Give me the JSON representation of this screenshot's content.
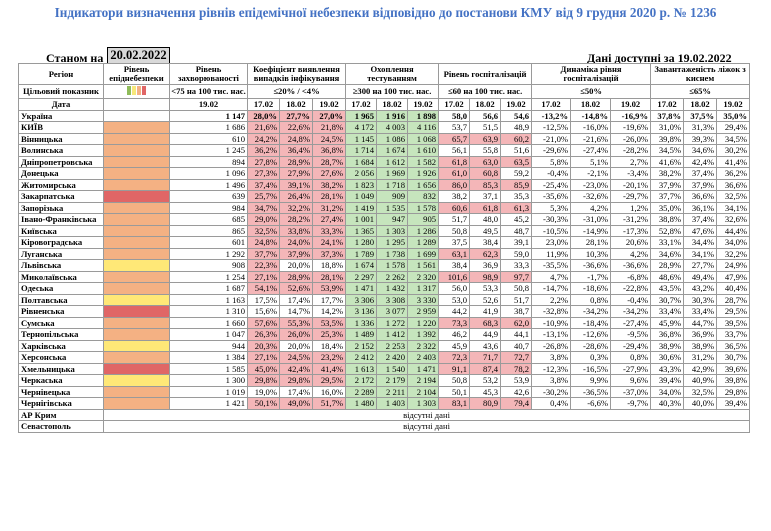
{
  "title": "Індикатори визначення рівнів епідемічної небезпеки відповідно до постанови КМУ від 9 грудня 2020 р. № 1236",
  "stanom_label": "Станом на",
  "stanom_date": "20.02.2022",
  "data_available": "Дані доступні за  19.02.2022",
  "headers": {
    "region": "Регіон",
    "level": "Рівень епіднебезпеки",
    "incidence": "Рівень захворюваності",
    "detection": "Коефіцієнт виявлення випадків інфікування",
    "testing": "Охоплення тестуванням",
    "hospitalization": "Рівень госпіталізацій",
    "dynamics": "Динаміка рівня госпіталізацій",
    "beds": "Завантаженість ліжок з киснем"
  },
  "target_row": {
    "label": "Цільовий показник",
    "incidence": "<75 на 100 тис. нас.",
    "detection": "≤20% / <4%",
    "testing": "≥300 на 100 тис. нас.",
    "hospitalization": "≤60 на 100 тис. нас.",
    "dynamics": "≤50%",
    "beds": "≤65%"
  },
  "target_swatches": [
    "#8fbc5a",
    "#f7e87a",
    "#f4b183",
    "#e06666"
  ],
  "date_row": {
    "label": "Дата",
    "incidence": "19.02",
    "dates": [
      "17.02",
      "18.02",
      "19.02"
    ]
  },
  "level_colors": {
    "orange": "#f4b183",
    "red": "#e06666",
    "yellow": "#ffe877"
  },
  "footer_text": "відсутні дані",
  "rows": [
    {
      "name": "Україна",
      "level": "",
      "inc": "1 147",
      "det": [
        "28,0%",
        "27,7%",
        "27,0%"
      ],
      "det_c": [
        "r",
        "r",
        "r"
      ],
      "tst": [
        "1 965",
        "1 916",
        "1 898"
      ],
      "tst_c": [
        "g",
        "g",
        "g"
      ],
      "hos": [
        "58,0",
        "56,6",
        "54,6"
      ],
      "hos_c": [
        "",
        "",
        ""
      ],
      "dyn": [
        "-13,2%",
        "-14,8%",
        "-16,9%"
      ],
      "bed": [
        "37,8%",
        "37,5%",
        "35,0%"
      ]
    },
    {
      "name": "КИЇВ",
      "level": "orange",
      "inc": "1 686",
      "det": [
        "21,6%",
        "22,6%",
        "21,8%"
      ],
      "det_c": [
        "r",
        "r",
        "r"
      ],
      "tst": [
        "4 172",
        "4 003",
        "4 116"
      ],
      "tst_c": [
        "g",
        "g",
        "g"
      ],
      "hos": [
        "53,7",
        "51,5",
        "48,9"
      ],
      "hos_c": [
        "",
        "",
        ""
      ],
      "dyn": [
        "-12,5%",
        "-16,0%",
        "-19,6%"
      ],
      "bed": [
        "31,0%",
        "31,3%",
        "29,4%"
      ]
    },
    {
      "name": "Вінницька",
      "level": "orange",
      "inc": "610",
      "det": [
        "24,2%",
        "24,8%",
        "24,5%"
      ],
      "det_c": [
        "r",
        "r",
        "r"
      ],
      "tst": [
        "1 145",
        "1 086",
        "1 068"
      ],
      "tst_c": [
        "g",
        "g",
        "g"
      ],
      "hos": [
        "65,7",
        "63,9",
        "60,2"
      ],
      "hos_c": [
        "r",
        "r",
        "r"
      ],
      "dyn": [
        "-21,0%",
        "-21,6%",
        "-26,0%"
      ],
      "bed": [
        "39,8%",
        "39,3%",
        "34,5%"
      ]
    },
    {
      "name": "Волинська",
      "level": "orange",
      "inc": "1 245",
      "det": [
        "36,2%",
        "36,4%",
        "36,8%"
      ],
      "det_c": [
        "r",
        "r",
        "r"
      ],
      "tst": [
        "1 714",
        "1 674",
        "1 610"
      ],
      "tst_c": [
        "g",
        "g",
        "g"
      ],
      "hos": [
        "56,1",
        "55,8",
        "51,6"
      ],
      "hos_c": [
        "",
        "",
        ""
      ],
      "dyn": [
        "-29,6%",
        "-27,4%",
        "-28,2%"
      ],
      "bed": [
        "34,5%",
        "34,6%",
        "30,2%"
      ]
    },
    {
      "name": "Дніпропетровська",
      "level": "orange",
      "inc": "894",
      "det": [
        "27,8%",
        "28,9%",
        "28,7%"
      ],
      "det_c": [
        "r",
        "r",
        "r"
      ],
      "tst": [
        "1 684",
        "1 612",
        "1 582"
      ],
      "tst_c": [
        "g",
        "g",
        "g"
      ],
      "hos": [
        "61,8",
        "63,0",
        "63,5"
      ],
      "hos_c": [
        "r",
        "r",
        "r"
      ],
      "dyn": [
        "5,8%",
        "5,1%",
        "2,7%"
      ],
      "bed": [
        "41,6%",
        "42,4%",
        "41,4%"
      ]
    },
    {
      "name": "Донецька",
      "level": "orange",
      "inc": "1 096",
      "det": [
        "27,3%",
        "27,9%",
        "27,6%"
      ],
      "det_c": [
        "r",
        "r",
        "r"
      ],
      "tst": [
        "2 056",
        "1 969",
        "1 926"
      ],
      "tst_c": [
        "g",
        "g",
        "g"
      ],
      "hos": [
        "61,0",
        "60,8",
        "59,2"
      ],
      "hos_c": [
        "r",
        "r",
        ""
      ],
      "dyn": [
        "-0,4%",
        "-2,1%",
        "-3,4%"
      ],
      "bed": [
        "38,2%",
        "37,4%",
        "36,2%"
      ]
    },
    {
      "name": "Житомирська",
      "level": "orange",
      "inc": "1 496",
      "det": [
        "37,4%",
        "39,1%",
        "38,2%"
      ],
      "det_c": [
        "r",
        "r",
        "r"
      ],
      "tst": [
        "1 823",
        "1 718",
        "1 656"
      ],
      "tst_c": [
        "g",
        "g",
        "g"
      ],
      "hos": [
        "86,0",
        "85,3",
        "85,9"
      ],
      "hos_c": [
        "r",
        "r",
        "r"
      ],
      "dyn": [
        "-25,4%",
        "-23,0%",
        "-20,1%"
      ],
      "bed": [
        "37,9%",
        "37,9%",
        "36,6%"
      ]
    },
    {
      "name": "Закарпатська",
      "level": "red",
      "inc": "639",
      "det": [
        "25,7%",
        "26,4%",
        "28,1%"
      ],
      "det_c": [
        "r",
        "r",
        "r"
      ],
      "tst": [
        "1 049",
        "909",
        "832"
      ],
      "tst_c": [
        "g",
        "g",
        "g"
      ],
      "hos": [
        "38,2",
        "37,1",
        "35,3"
      ],
      "hos_c": [
        "",
        "",
        ""
      ],
      "dyn": [
        "-35,6%",
        "-32,6%",
        "-29,7%"
      ],
      "bed": [
        "37,7%",
        "36,6%",
        "32,5%"
      ]
    },
    {
      "name": "Запорізька",
      "level": "orange",
      "inc": "984",
      "det": [
        "34,7%",
        "32,2%",
        "31,2%"
      ],
      "det_c": [
        "r",
        "r",
        "r"
      ],
      "tst": [
        "1 419",
        "1 535",
        "1 578"
      ],
      "tst_c": [
        "g",
        "g",
        "g"
      ],
      "hos": [
        "60,6",
        "61,8",
        "61,3"
      ],
      "hos_c": [
        "r",
        "r",
        "r"
      ],
      "dyn": [
        "5,3%",
        "4,2%",
        "1,2%"
      ],
      "bed": [
        "35,0%",
        "36,1%",
        "34,1%"
      ]
    },
    {
      "name": "Івано-Франківська",
      "level": "orange",
      "inc": "685",
      "det": [
        "29,0%",
        "28,2%",
        "27,4%"
      ],
      "det_c": [
        "r",
        "r",
        "r"
      ],
      "tst": [
        "1 001",
        "947",
        "905"
      ],
      "tst_c": [
        "g",
        "g",
        "g"
      ],
      "hos": [
        "51,7",
        "48,0",
        "45,2"
      ],
      "hos_c": [
        "",
        "",
        ""
      ],
      "dyn": [
        "-30,3%",
        "-31,0%",
        "-31,2%"
      ],
      "bed": [
        "38,8%",
        "37,4%",
        "32,6%"
      ]
    },
    {
      "name": "Київська",
      "level": "orange",
      "inc": "865",
      "det": [
        "32,5%",
        "33,8%",
        "33,3%"
      ],
      "det_c": [
        "r",
        "r",
        "r"
      ],
      "tst": [
        "1 365",
        "1 303",
        "1 286"
      ],
      "tst_c": [
        "g",
        "g",
        "g"
      ],
      "hos": [
        "50,8",
        "49,5",
        "48,7"
      ],
      "hos_c": [
        "",
        "",
        ""
      ],
      "dyn": [
        "-10,5%",
        "-14,9%",
        "-17,3%"
      ],
      "bed": [
        "52,8%",
        "47,6%",
        "44,4%"
      ]
    },
    {
      "name": "Кіровоградська",
      "level": "orange",
      "inc": "601",
      "det": [
        "24,8%",
        "24,0%",
        "24,1%"
      ],
      "det_c": [
        "r",
        "r",
        "r"
      ],
      "tst": [
        "1 280",
        "1 295",
        "1 289"
      ],
      "tst_c": [
        "g",
        "g",
        "g"
      ],
      "hos": [
        "37,5",
        "38,4",
        "39,1"
      ],
      "hos_c": [
        "",
        "",
        ""
      ],
      "dyn": [
        "23,0%",
        "28,1%",
        "20,6%"
      ],
      "bed": [
        "33,1%",
        "34,4%",
        "34,0%"
      ]
    },
    {
      "name": "Луганська",
      "level": "orange",
      "inc": "1 292",
      "det": [
        "37,7%",
        "37,9%",
        "37,3%"
      ],
      "det_c": [
        "r",
        "r",
        "r"
      ],
      "tst": [
        "1 789",
        "1 738",
        "1 699"
      ],
      "tst_c": [
        "g",
        "g",
        "g"
      ],
      "hos": [
        "63,1",
        "62,3",
        "59,0"
      ],
      "hos_c": [
        "r",
        "r",
        ""
      ],
      "dyn": [
        "11,9%",
        "10,3%",
        "4,2%"
      ],
      "bed": [
        "34,6%",
        "34,1%",
        "32,2%"
      ]
    },
    {
      "name": "Львівська",
      "level": "yellow",
      "inc": "908",
      "det": [
        "22,3%",
        "20,0%",
        "18,8%"
      ],
      "det_c": [
        "r",
        "",
        ""
      ],
      "tst": [
        "1 674",
        "1 578",
        "1 561"
      ],
      "tst_c": [
        "g",
        "g",
        "g"
      ],
      "hos": [
        "38,4",
        "36,9",
        "33,3"
      ],
      "hos_c": [
        "",
        "",
        ""
      ],
      "dyn": [
        "-35,5%",
        "-36,6%",
        "-36,6%"
      ],
      "bed": [
        "28,9%",
        "27,7%",
        "24,9%"
      ]
    },
    {
      "name": "Миколаївська",
      "level": "orange",
      "inc": "1 254",
      "det": [
        "27,1%",
        "28,9%",
        "28,1%"
      ],
      "det_c": [
        "r",
        "r",
        "r"
      ],
      "tst": [
        "2 297",
        "2 262",
        "2 320"
      ],
      "tst_c": [
        "g",
        "g",
        "g"
      ],
      "hos": [
        "101,6",
        "98,9",
        "97,7"
      ],
      "hos_c": [
        "r",
        "r",
        "r"
      ],
      "dyn": [
        "4,7%",
        "-1,7%",
        "-6,8%"
      ],
      "bed": [
        "48,6%",
        "49,4%",
        "47,9%"
      ]
    },
    {
      "name": "Одеська",
      "level": "orange",
      "inc": "1 687",
      "det": [
        "54,1%",
        "52,6%",
        "53,9%"
      ],
      "det_c": [
        "r",
        "r",
        "r"
      ],
      "tst": [
        "1 471",
        "1 432",
        "1 317"
      ],
      "tst_c": [
        "g",
        "g",
        "g"
      ],
      "hos": [
        "56,0",
        "53,3",
        "50,8"
      ],
      "hos_c": [
        "",
        "",
        ""
      ],
      "dyn": [
        "-14,7%",
        "-18,6%",
        "-22,8%"
      ],
      "bed": [
        "43,5%",
        "43,2%",
        "40,4%"
      ]
    },
    {
      "name": "Полтавська",
      "level": "yellow",
      "inc": "1 163",
      "det": [
        "17,5%",
        "17,4%",
        "17,7%"
      ],
      "det_c": [
        "",
        "",
        ""
      ],
      "tst": [
        "3 306",
        "3 308",
        "3 330"
      ],
      "tst_c": [
        "g",
        "g",
        "g"
      ],
      "hos": [
        "53,0",
        "52,6",
        "51,7"
      ],
      "hos_c": [
        "",
        "",
        ""
      ],
      "dyn": [
        "2,2%",
        "0,8%",
        "-0,4%"
      ],
      "bed": [
        "30,7%",
        "30,3%",
        "28,7%"
      ]
    },
    {
      "name": "Рівненська",
      "level": "red",
      "inc": "1 310",
      "det": [
        "15,6%",
        "14,7%",
        "14,2%"
      ],
      "det_c": [
        "",
        "",
        ""
      ],
      "tst": [
        "3 136",
        "3 077",
        "2 959"
      ],
      "tst_c": [
        "g",
        "g",
        "g"
      ],
      "hos": [
        "44,2",
        "41,9",
        "38,7"
      ],
      "hos_c": [
        "",
        "",
        ""
      ],
      "dyn": [
        "-32,8%",
        "-34,2%",
        "-34,2%"
      ],
      "bed": [
        "33,4%",
        "33,4%",
        "29,5%"
      ]
    },
    {
      "name": "Сумська",
      "level": "orange",
      "inc": "1 660",
      "det": [
        "57,6%",
        "55,3%",
        "53,5%"
      ],
      "det_c": [
        "r",
        "r",
        "r"
      ],
      "tst": [
        "1 336",
        "1 272",
        "1 220"
      ],
      "tst_c": [
        "g",
        "g",
        "g"
      ],
      "hos": [
        "73,3",
        "68,3",
        "62,0"
      ],
      "hos_c": [
        "r",
        "r",
        "r"
      ],
      "dyn": [
        "-10,9%",
        "-18,4%",
        "-27,4%"
      ],
      "bed": [
        "45,9%",
        "44,7%",
        "39,5%"
      ]
    },
    {
      "name": "Тернопільська",
      "level": "orange",
      "inc": "1 047",
      "det": [
        "26,3%",
        "26,0%",
        "25,3%"
      ],
      "det_c": [
        "r",
        "r",
        "r"
      ],
      "tst": [
        "1 489",
        "1 412",
        "1 392"
      ],
      "tst_c": [
        "g",
        "g",
        "g"
      ],
      "hos": [
        "46,2",
        "44,9",
        "44,1"
      ],
      "hos_c": [
        "",
        "",
        ""
      ],
      "dyn": [
        "-13,1%",
        "-12,6%",
        "-9,5%"
      ],
      "bed": [
        "36,8%",
        "36,9%",
        "33,7%"
      ]
    },
    {
      "name": "Харківська",
      "level": "yellow",
      "inc": "944",
      "det": [
        "20,3%",
        "20,0%",
        "18,4%"
      ],
      "det_c": [
        "r",
        "",
        ""
      ],
      "tst": [
        "2 152",
        "2 253",
        "2 322"
      ],
      "tst_c": [
        "g",
        "g",
        "g"
      ],
      "hos": [
        "45,9",
        "43,6",
        "40,7"
      ],
      "hos_c": [
        "",
        "",
        ""
      ],
      "dyn": [
        "-26,8%",
        "-28,6%",
        "-29,4%"
      ],
      "bed": [
        "38,9%",
        "38,9%",
        "36,5%"
      ]
    },
    {
      "name": "Херсонська",
      "level": "orange",
      "inc": "1 384",
      "det": [
        "27,1%",
        "24,5%",
        "23,2%"
      ],
      "det_c": [
        "r",
        "r",
        "r"
      ],
      "tst": [
        "2 412",
        "2 420",
        "2 403"
      ],
      "tst_c": [
        "g",
        "g",
        "g"
      ],
      "hos": [
        "72,3",
        "71,7",
        "72,7"
      ],
      "hos_c": [
        "r",
        "r",
        "r"
      ],
      "dyn": [
        "3,8%",
        "0,3%",
        "0,8%"
      ],
      "bed": [
        "30,6%",
        "31,2%",
        "30,7%"
      ]
    },
    {
      "name": "Хмельницька",
      "level": "red",
      "inc": "1 585",
      "det": [
        "45,0%",
        "42,4%",
        "41,4%"
      ],
      "det_c": [
        "r",
        "r",
        "r"
      ],
      "tst": [
        "1 613",
        "1 540",
        "1 471"
      ],
      "tst_c": [
        "g",
        "g",
        "g"
      ],
      "hos": [
        "91,1",
        "87,4",
        "78,2"
      ],
      "hos_c": [
        "r",
        "r",
        "r"
      ],
      "dyn": [
        "-12,3%",
        "-16,5%",
        "-27,9%"
      ],
      "bed": [
        "43,3%",
        "42,9%",
        "39,6%"
      ]
    },
    {
      "name": "Черкаська",
      "level": "yellow",
      "inc": "1 300",
      "det": [
        "29,8%",
        "29,8%",
        "29,5%"
      ],
      "det_c": [
        "r",
        "r",
        "r"
      ],
      "tst": [
        "2 172",
        "2 179",
        "2 194"
      ],
      "tst_c": [
        "g",
        "g",
        "g"
      ],
      "hos": [
        "50,8",
        "53,2",
        "53,9"
      ],
      "hos_c": [
        "",
        "",
        ""
      ],
      "dyn": [
        "3,8%",
        "9,9%",
        "9,6%"
      ],
      "bed": [
        "39,4%",
        "40,9%",
        "39,8%"
      ]
    },
    {
      "name": "Чернівецька",
      "level": "orange",
      "inc": "1 019",
      "det": [
        "19,0%",
        "17,4%",
        "16,0%"
      ],
      "det_c": [
        "",
        "",
        ""
      ],
      "tst": [
        "2 289",
        "2 211",
        "2 104"
      ],
      "tst_c": [
        "g",
        "g",
        "g"
      ],
      "hos": [
        "50,1",
        "45,3",
        "42,6"
      ],
      "hos_c": [
        "",
        "",
        ""
      ],
      "dyn": [
        "-30,2%",
        "-36,5%",
        "-37,0%"
      ],
      "bed": [
        "34,0%",
        "32,5%",
        "29,8%"
      ]
    },
    {
      "name": "Чернігівська",
      "level": "orange",
      "inc": "1 421",
      "det": [
        "50,1%",
        "49,0%",
        "51,7%"
      ],
      "det_c": [
        "r",
        "r",
        "r"
      ],
      "tst": [
        "1 480",
        "1 403",
        "1 303"
      ],
      "tst_c": [
        "g",
        "g",
        "g"
      ],
      "hos": [
        "83,1",
        "80,9",
        "79,4"
      ],
      "hos_c": [
        "r",
        "r",
        "r"
      ],
      "dyn": [
        "0,4%",
        "-6,6%",
        "-9,7%"
      ],
      "bed": [
        "40,3%",
        "40,0%",
        "39,4%"
      ]
    }
  ],
  "footer_rows": [
    {
      "name": "АР Крим"
    },
    {
      "name": "Севастополь"
    }
  ]
}
